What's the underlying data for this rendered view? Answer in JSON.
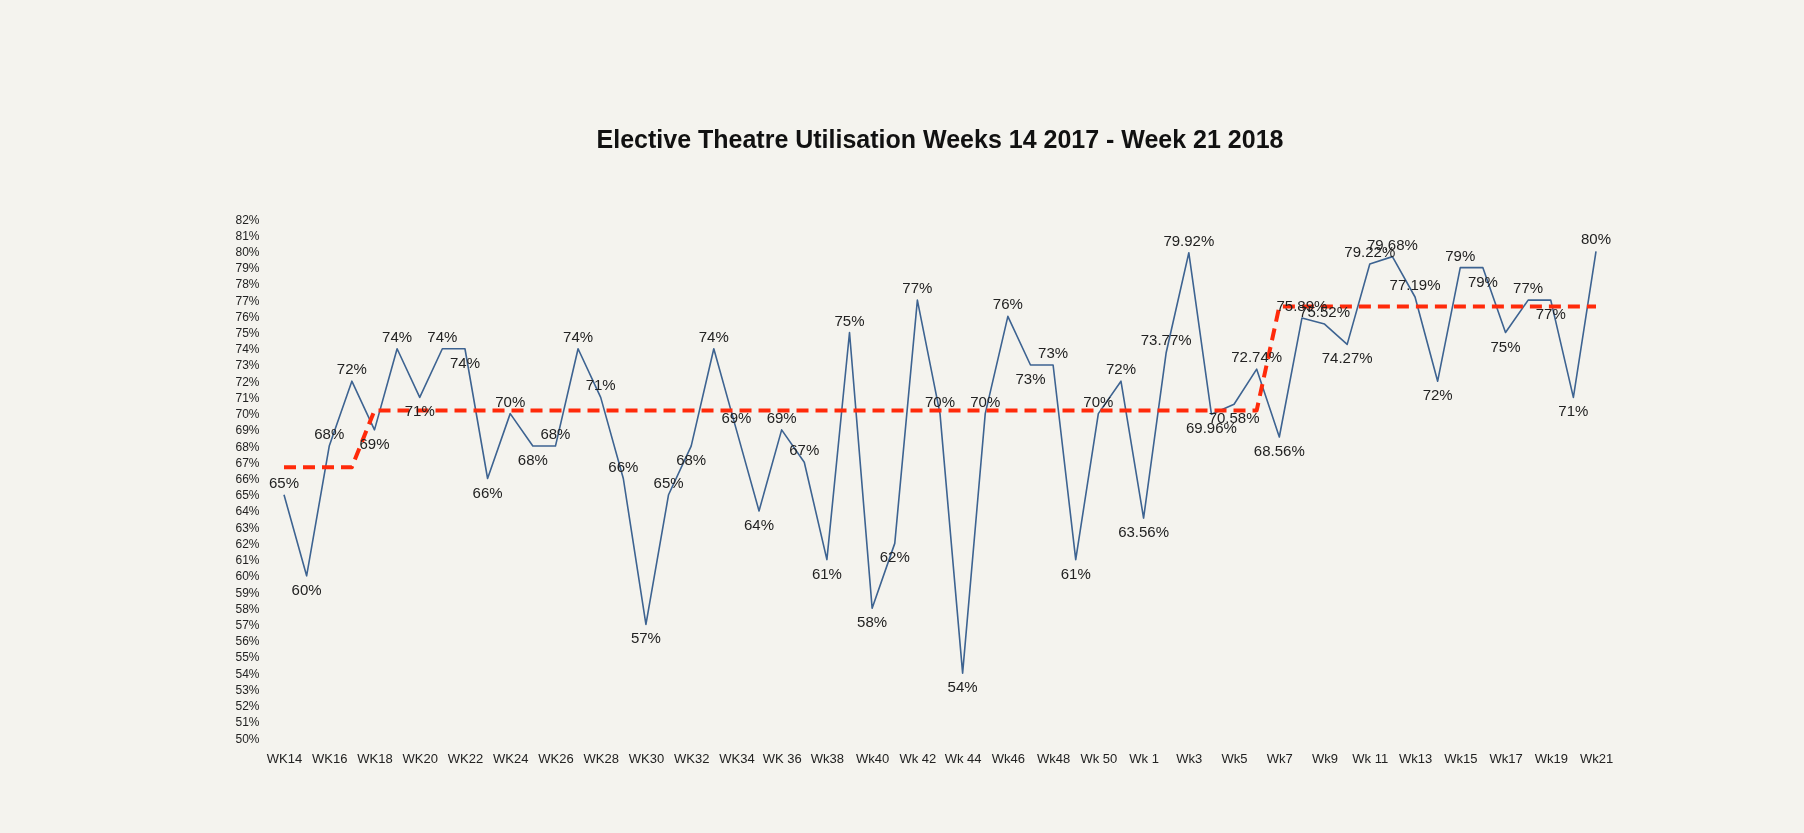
{
  "chart_data": {
    "type": "line",
    "title": "Elective Theatre Utilisation Weeks 14  2017 - Week  21 2018",
    "categories": [
      "WK14",
      null,
      "WK16",
      null,
      "WK18",
      null,
      "WK20",
      null,
      "WK22",
      null,
      "WK24",
      null,
      "WK26",
      null,
      "WK28",
      null,
      "WK30",
      null,
      "WK32",
      null,
      "WK34",
      null,
      "WK 36",
      null,
      "Wk38",
      null,
      "Wk40",
      null,
      "Wk 42",
      null,
      "Wk 44",
      null,
      "Wk46",
      null,
      "Wk48",
      null,
      "Wk 50",
      null,
      "Wk 1",
      null,
      "Wk3",
      null,
      "Wk5",
      null,
      "Wk7",
      null,
      "Wk9",
      null,
      "Wk 11",
      null,
      "Wk13",
      null,
      "Wk15",
      null,
      "Wk17",
      null,
      "Wk19",
      null,
      "Wk21"
    ],
    "series": [
      {
        "color": "#3d6391",
        "line_style": "solid",
        "values": [
          65,
          60,
          68,
          72,
          69,
          74,
          71,
          74,
          74,
          66,
          70,
          68,
          68,
          74,
          71,
          66,
          57,
          65,
          68,
          74,
          69,
          64,
          69,
          67,
          61,
          75,
          58,
          62,
          77,
          70,
          54,
          70,
          76,
          73,
          73,
          61,
          70,
          72,
          63.56,
          73.77,
          79.92,
          69.96,
          70.58,
          72.74,
          68.56,
          75.89,
          75.52,
          74.27,
          79.22,
          79.68,
          77.19,
          72,
          79,
          79,
          75,
          77,
          77,
          71,
          80
        ],
        "value_labels": [
          "65%",
          "60%",
          "68%",
          "72%",
          "69%",
          "74%",
          "71%",
          "74%",
          "74%",
          "66%",
          "70%",
          "68%",
          "68%",
          "74%",
          "71%",
          "66%",
          "57%",
          "65%",
          "68%",
          "74%",
          "69%",
          "64%",
          "69%",
          "67%",
          "61%",
          "75%",
          "58%",
          "62%",
          "77%",
          "70%",
          "54%",
          "70%",
          "76%",
          "73%",
          "73%",
          "61%",
          "70%",
          "72%",
          "63.56%",
          "73.77%",
          "79.92%",
          "69.96%",
          "70.58%",
          "72.74%",
          "68.56%",
          "75.89%",
          "75.52%",
          "74.27%",
          "79.22%",
          "79.68%",
          "77.19%",
          "72%",
          "79%",
          "79%",
          "75%",
          "77%",
          "77%",
          "71%",
          "80%"
        ]
      },
      {
        "color": "#ff2a0a",
        "line_style": "dashed",
        "values": [
          66.7,
          66.7,
          66.7,
          66.7,
          70.2,
          70.2,
          70.2,
          70.2,
          70.2,
          70.2,
          70.2,
          70.2,
          70.2,
          70.2,
          70.2,
          70.2,
          70.2,
          70.2,
          70.2,
          70.2,
          70.2,
          70.2,
          70.2,
          70.2,
          70.2,
          70.2,
          70.2,
          70.2,
          70.2,
          70.2,
          70.2,
          70.2,
          70.2,
          70.2,
          70.2,
          70.2,
          70.2,
          70.2,
          70.2,
          70.2,
          70.2,
          70.2,
          70.2,
          70.2,
          76.6,
          76.6,
          76.6,
          76.6,
          76.6,
          76.6,
          76.6,
          76.6,
          76.6,
          76.6,
          76.6,
          76.6,
          76.6,
          76.6,
          76.6
        ]
      }
    ],
    "ylim": [
      50,
      82
    ],
    "yticks": [
      {
        "value": 50,
        "label": "50%"
      },
      {
        "value": 51,
        "label": "51%"
      },
      {
        "value": 52,
        "label": "52%"
      },
      {
        "value": 53,
        "label": "53%"
      },
      {
        "value": 54,
        "label": "54%"
      },
      {
        "value": 55,
        "label": "55%"
      },
      {
        "value": 56,
        "label": "56%"
      },
      {
        "value": 57,
        "label": "57%"
      },
      {
        "value": 58,
        "label": "58%"
      },
      {
        "value": 59,
        "label": "59%"
      },
      {
        "value": 60,
        "label": "60%"
      },
      {
        "value": 61,
        "label": "61%"
      },
      {
        "value": 62,
        "label": "62%"
      },
      {
        "value": 63,
        "label": "63%"
      },
      {
        "value": 64,
        "label": "64%"
      },
      {
        "value": 65,
        "label": "65%"
      },
      {
        "value": 66,
        "label": "66%"
      },
      {
        "value": 67,
        "label": "67%"
      },
      {
        "value": 68,
        "label": "68%"
      },
      {
        "value": 69,
        "label": "69%"
      },
      {
        "value": 70,
        "label": "70%"
      },
      {
        "value": 71,
        "label": "71%"
      },
      {
        "value": 72,
        "label": "72%"
      },
      {
        "value": 73,
        "label": "73%"
      },
      {
        "value": 74,
        "label": "74%"
      },
      {
        "value": 75,
        "label": "75%"
      },
      {
        "value": 76,
        "label": "76%"
      },
      {
        "value": 77,
        "label": "77%"
      },
      {
        "value": 78,
        "label": "78%"
      },
      {
        "value": 79,
        "label": "79%"
      },
      {
        "value": 80,
        "label": "80%"
      },
      {
        "value": 81,
        "label": "81%"
      },
      {
        "value": 82,
        "label": "82%"
      }
    ],
    "grid": false
  }
}
